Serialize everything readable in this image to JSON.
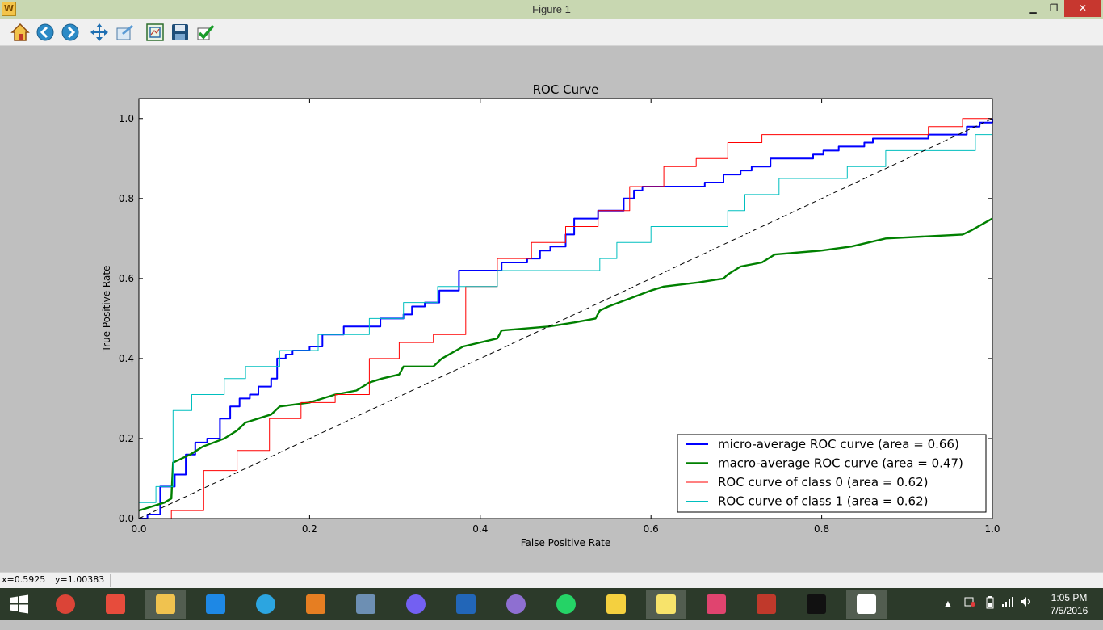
{
  "window": {
    "title": "Figure 1",
    "minimize": "▁",
    "maximize": "❐",
    "close": "✕"
  },
  "toolbar": {
    "buttons": [
      "home-icon",
      "back-icon",
      "forward-icon",
      "pan-icon",
      "subplots-icon",
      "zoom-icon",
      "save-icon",
      "confirm-icon"
    ]
  },
  "status": {
    "x": "x=0.5925",
    "y": "y=1.00383"
  },
  "chart_data": {
    "type": "line",
    "title": "ROC Curve",
    "xlabel": "False Positive Rate",
    "ylabel": "True Positive Rate",
    "xlim": [
      0.0,
      1.0
    ],
    "ylim": [
      0.0,
      1.05
    ],
    "xticks": [
      "0.0",
      "0.2",
      "0.4",
      "0.6",
      "0.8",
      "1.0"
    ],
    "yticks": [
      "0.0",
      "0.2",
      "0.4",
      "0.6",
      "0.8",
      "1.0"
    ],
    "legend_position": "lower right",
    "grid": false,
    "series": [
      {
        "name": "micro-average ROC curve (area = 0.66)",
        "color": "#0000ff",
        "width": 2,
        "style": "step",
        "points": [
          [
            0.0,
            0.0
          ],
          [
            0.01,
            0.0
          ],
          [
            0.01,
            0.01
          ],
          [
            0.025,
            0.01
          ],
          [
            0.025,
            0.08
          ],
          [
            0.042,
            0.08
          ],
          [
            0.042,
            0.11
          ],
          [
            0.055,
            0.11
          ],
          [
            0.055,
            0.16
          ],
          [
            0.066,
            0.16
          ],
          [
            0.066,
            0.19
          ],
          [
            0.08,
            0.19
          ],
          [
            0.08,
            0.2
          ],
          [
            0.095,
            0.2
          ],
          [
            0.095,
            0.25
          ],
          [
            0.107,
            0.25
          ],
          [
            0.107,
            0.28
          ],
          [
            0.118,
            0.28
          ],
          [
            0.118,
            0.3
          ],
          [
            0.13,
            0.3
          ],
          [
            0.13,
            0.31
          ],
          [
            0.14,
            0.31
          ],
          [
            0.14,
            0.33
          ],
          [
            0.155,
            0.33
          ],
          [
            0.155,
            0.35
          ],
          [
            0.162,
            0.35
          ],
          [
            0.162,
            0.4
          ],
          [
            0.172,
            0.4
          ],
          [
            0.172,
            0.41
          ],
          [
            0.18,
            0.41
          ],
          [
            0.18,
            0.42
          ],
          [
            0.2,
            0.42
          ],
          [
            0.2,
            0.43
          ],
          [
            0.215,
            0.43
          ],
          [
            0.215,
            0.46
          ],
          [
            0.24,
            0.46
          ],
          [
            0.24,
            0.48
          ],
          [
            0.283,
            0.48
          ],
          [
            0.283,
            0.5
          ],
          [
            0.31,
            0.5
          ],
          [
            0.31,
            0.51
          ],
          [
            0.32,
            0.51
          ],
          [
            0.32,
            0.53
          ],
          [
            0.335,
            0.53
          ],
          [
            0.335,
            0.54
          ],
          [
            0.352,
            0.54
          ],
          [
            0.352,
            0.57
          ],
          [
            0.375,
            0.57
          ],
          [
            0.375,
            0.62
          ],
          [
            0.425,
            0.62
          ],
          [
            0.425,
            0.64
          ],
          [
            0.455,
            0.64
          ],
          [
            0.455,
            0.65
          ],
          [
            0.47,
            0.65
          ],
          [
            0.47,
            0.67
          ],
          [
            0.482,
            0.67
          ],
          [
            0.482,
            0.68
          ],
          [
            0.5,
            0.68
          ],
          [
            0.5,
            0.71
          ],
          [
            0.51,
            0.71
          ],
          [
            0.51,
            0.75
          ],
          [
            0.538,
            0.75
          ],
          [
            0.538,
            0.77
          ],
          [
            0.568,
            0.77
          ],
          [
            0.568,
            0.8
          ],
          [
            0.58,
            0.8
          ],
          [
            0.58,
            0.82
          ],
          [
            0.59,
            0.82
          ],
          [
            0.59,
            0.83
          ],
          [
            0.663,
            0.83
          ],
          [
            0.663,
            0.84
          ],
          [
            0.685,
            0.84
          ],
          [
            0.685,
            0.86
          ],
          [
            0.705,
            0.86
          ],
          [
            0.705,
            0.87
          ],
          [
            0.718,
            0.87
          ],
          [
            0.718,
            0.88
          ],
          [
            0.74,
            0.88
          ],
          [
            0.74,
            0.9
          ],
          [
            0.79,
            0.9
          ],
          [
            0.79,
            0.91
          ],
          [
            0.802,
            0.91
          ],
          [
            0.802,
            0.92
          ],
          [
            0.82,
            0.92
          ],
          [
            0.82,
            0.93
          ],
          [
            0.85,
            0.93
          ],
          [
            0.85,
            0.94
          ],
          [
            0.86,
            0.94
          ],
          [
            0.86,
            0.95
          ],
          [
            0.925,
            0.95
          ],
          [
            0.925,
            0.96
          ],
          [
            0.97,
            0.96
          ],
          [
            0.97,
            0.98
          ],
          [
            0.985,
            0.98
          ],
          [
            0.985,
            0.99
          ],
          [
            1.0,
            0.99
          ],
          [
            1.0,
            1.0
          ]
        ]
      },
      {
        "name": "macro-average ROC curve (area = 0.47)",
        "color": "#008000",
        "width": 2.4,
        "style": "line",
        "points": [
          [
            0.0,
            0.02
          ],
          [
            0.03,
            0.04
          ],
          [
            0.038,
            0.05
          ],
          [
            0.04,
            0.14
          ],
          [
            0.06,
            0.16
          ],
          [
            0.075,
            0.18
          ],
          [
            0.1,
            0.2
          ],
          [
            0.115,
            0.22
          ],
          [
            0.125,
            0.24
          ],
          [
            0.155,
            0.26
          ],
          [
            0.165,
            0.28
          ],
          [
            0.2,
            0.29
          ],
          [
            0.23,
            0.31
          ],
          [
            0.255,
            0.32
          ],
          [
            0.27,
            0.34
          ],
          [
            0.285,
            0.35
          ],
          [
            0.305,
            0.36
          ],
          [
            0.31,
            0.38
          ],
          [
            0.345,
            0.38
          ],
          [
            0.355,
            0.4
          ],
          [
            0.38,
            0.43
          ],
          [
            0.42,
            0.45
          ],
          [
            0.425,
            0.47
          ],
          [
            0.48,
            0.48
          ],
          [
            0.51,
            0.49
          ],
          [
            0.535,
            0.5
          ],
          [
            0.54,
            0.52
          ],
          [
            0.55,
            0.53
          ],
          [
            0.575,
            0.55
          ],
          [
            0.6,
            0.57
          ],
          [
            0.615,
            0.58
          ],
          [
            0.655,
            0.59
          ],
          [
            0.685,
            0.6
          ],
          [
            0.69,
            0.61
          ],
          [
            0.705,
            0.63
          ],
          [
            0.73,
            0.64
          ],
          [
            0.745,
            0.66
          ],
          [
            0.8,
            0.67
          ],
          [
            0.835,
            0.68
          ],
          [
            0.875,
            0.7
          ],
          [
            0.965,
            0.71
          ],
          [
            0.975,
            0.72
          ],
          [
            1.0,
            0.75
          ]
        ]
      },
      {
        "name": "ROC curve of class 0 (area = 0.62)",
        "color": "#ff0000",
        "width": 1,
        "style": "step",
        "points": [
          [
            0.0,
            0.0
          ],
          [
            0.038,
            0.0
          ],
          [
            0.038,
            0.02
          ],
          [
            0.076,
            0.02
          ],
          [
            0.076,
            0.12
          ],
          [
            0.115,
            0.12
          ],
          [
            0.115,
            0.17
          ],
          [
            0.153,
            0.17
          ],
          [
            0.153,
            0.21
          ],
          [
            0.153,
            0.25
          ],
          [
            0.19,
            0.25
          ],
          [
            0.19,
            0.29
          ],
          [
            0.23,
            0.29
          ],
          [
            0.23,
            0.31
          ],
          [
            0.27,
            0.31
          ],
          [
            0.27,
            0.4
          ],
          [
            0.305,
            0.4
          ],
          [
            0.305,
            0.44
          ],
          [
            0.345,
            0.44
          ],
          [
            0.345,
            0.46
          ],
          [
            0.383,
            0.46
          ],
          [
            0.383,
            0.58
          ],
          [
            0.42,
            0.58
          ],
          [
            0.42,
            0.65
          ],
          [
            0.46,
            0.65
          ],
          [
            0.46,
            0.69
          ],
          [
            0.5,
            0.69
          ],
          [
            0.5,
            0.73
          ],
          [
            0.538,
            0.73
          ],
          [
            0.538,
            0.77
          ],
          [
            0.575,
            0.77
          ],
          [
            0.575,
            0.83
          ],
          [
            0.615,
            0.83
          ],
          [
            0.615,
            0.88
          ],
          [
            0.653,
            0.88
          ],
          [
            0.653,
            0.9
          ],
          [
            0.69,
            0.9
          ],
          [
            0.69,
            0.94
          ],
          [
            0.73,
            0.94
          ],
          [
            0.73,
            0.96
          ],
          [
            0.925,
            0.96
          ],
          [
            0.925,
            0.98
          ],
          [
            0.965,
            0.98
          ],
          [
            0.965,
            1.0
          ],
          [
            1.0,
            1.0
          ]
        ]
      },
      {
        "name": "ROC curve of class 1 (area = 0.62)",
        "color": "#00bfbf",
        "width": 1,
        "style": "step",
        "points": [
          [
            0.0,
            0.04
          ],
          [
            0.02,
            0.04
          ],
          [
            0.02,
            0.08
          ],
          [
            0.04,
            0.08
          ],
          [
            0.04,
            0.27
          ],
          [
            0.062,
            0.27
          ],
          [
            0.062,
            0.31
          ],
          [
            0.1,
            0.31
          ],
          [
            0.1,
            0.35
          ],
          [
            0.125,
            0.35
          ],
          [
            0.125,
            0.38
          ],
          [
            0.165,
            0.38
          ],
          [
            0.165,
            0.42
          ],
          [
            0.21,
            0.42
          ],
          [
            0.21,
            0.46
          ],
          [
            0.27,
            0.46
          ],
          [
            0.27,
            0.5
          ],
          [
            0.31,
            0.5
          ],
          [
            0.31,
            0.54
          ],
          [
            0.35,
            0.54
          ],
          [
            0.35,
            0.58
          ],
          [
            0.42,
            0.58
          ],
          [
            0.42,
            0.62
          ],
          [
            0.54,
            0.62
          ],
          [
            0.54,
            0.65
          ],
          [
            0.56,
            0.65
          ],
          [
            0.56,
            0.69
          ],
          [
            0.6,
            0.69
          ],
          [
            0.6,
            0.73
          ],
          [
            0.69,
            0.73
          ],
          [
            0.69,
            0.77
          ],
          [
            0.71,
            0.77
          ],
          [
            0.71,
            0.81
          ],
          [
            0.75,
            0.81
          ],
          [
            0.75,
            0.85
          ],
          [
            0.83,
            0.85
          ],
          [
            0.83,
            0.88
          ],
          [
            0.875,
            0.88
          ],
          [
            0.875,
            0.92
          ],
          [
            0.98,
            0.92
          ],
          [
            0.98,
            0.96
          ],
          [
            1.0,
            0.96
          ]
        ]
      },
      {
        "name": "",
        "color": "#000000",
        "width": 1,
        "style": "dashed",
        "points": [
          [
            0.0,
            0.0
          ],
          [
            1.0,
            1.0
          ]
        ]
      }
    ]
  },
  "taskbar": {
    "apps": [
      {
        "name": "chrome-icon",
        "color": "#db4437"
      },
      {
        "name": "apps-icon",
        "color": "#e74c3c"
      },
      {
        "name": "file-explorer-icon",
        "color": "#f0c24f",
        "active": true
      },
      {
        "name": "visual-studio-icon",
        "color": "#1e88e5"
      },
      {
        "name": "telegram-icon",
        "color": "#2ca5e0"
      },
      {
        "name": "box-app-icon",
        "color": "#e67e22"
      },
      {
        "name": "media-player-icon",
        "color": "#6d8fb3"
      },
      {
        "name": "viber-icon",
        "color": "#7360f2"
      },
      {
        "name": "r-icon",
        "color": "#2266b8"
      },
      {
        "name": "github-icon",
        "color": "#8e6fd1"
      },
      {
        "name": "whatsapp-icon",
        "color": "#25d366"
      },
      {
        "name": "tips-icon",
        "color": "#f4d03f"
      },
      {
        "name": "sticky-notes-icon",
        "color": "#f7e36b",
        "active": true
      },
      {
        "name": "intellij-icon",
        "color": "#e0446f"
      },
      {
        "name": "store-icon",
        "color": "#c0392b"
      },
      {
        "name": "cmd-icon",
        "color": "#111111"
      },
      {
        "name": "ipython-icon",
        "color": "#ffffff",
        "active": true
      }
    ],
    "time": "1:05 PM",
    "date": "7/5/2016"
  }
}
